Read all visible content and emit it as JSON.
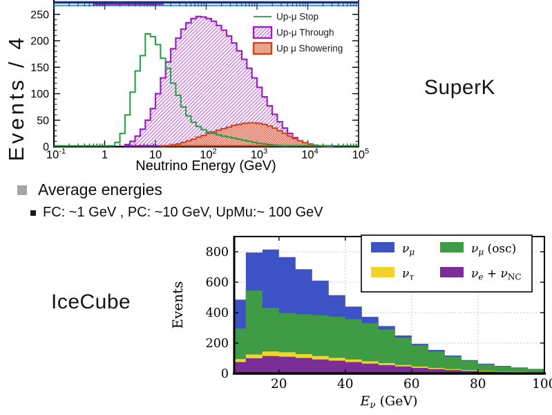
{
  "slide": {
    "superk_label": "SuperK",
    "icecube_label": "IceCube",
    "bullet_title": "Average energies",
    "bullet_sub": "FC: ~1 GeV , PC: ~10 GeV,  UpMu:~ 100 GeV"
  },
  "chart_data": [
    {
      "type": "area",
      "name": "superk-upward-muon-energy-spectrum",
      "xlabel": "Neutrino Energy (GeV)",
      "ylabel_visible": "Events / 4",
      "xscale": "log",
      "xlim": [
        0.1,
        100000
      ],
      "ylim_visible": [
        0,
        260
      ],
      "yticks": [
        0,
        50,
        100,
        150,
        200,
        250
      ],
      "xticks": [
        {
          "base": "10",
          "exp": "-1",
          "log": -1
        },
        {
          "base": "1",
          "exp": "",
          "log": 0
        },
        {
          "base": "10",
          "exp": "",
          "log": 1
        },
        {
          "base": "10",
          "exp": "2",
          "log": 2
        },
        {
          "base": "10",
          "exp": "3",
          "log": 3
        },
        {
          "base": "10",
          "exp": "4",
          "log": 4
        },
        {
          "base": "10",
          "exp": "5",
          "log": 5
        }
      ],
      "bins": {
        "log10_start": -1,
        "log10_step": 0.1,
        "count": 60
      },
      "legend": [
        {
          "label": "Up-μ Stop",
          "style": "line",
          "color": "#1f9e40"
        },
        {
          "label": "Up-μ Through",
          "style": "hatch",
          "color": "#9b1fc4"
        },
        {
          "label": "Up μ Showering",
          "style": "dots",
          "color": "#cc4418"
        }
      ],
      "colors": {
        "stop_line": "#1f9e40",
        "through_edge": "#9b1fc4",
        "through_hatch": "#c95fe0",
        "showering_edge": "#cc4418",
        "showering_fill": "#f4b4a1",
        "showering_dots": "#cf5533",
        "top_frame_navy": "#1c3179",
        "top_line_cyan": "#35a7c9",
        "top_line_magenta": "#c526b8"
      },
      "series": [
        {
          "name": "Up-μ Stop",
          "values": [
            0,
            0,
            0,
            0,
            0,
            0,
            0,
            0,
            0,
            0,
            0,
            0,
            8,
            25,
            60,
            103,
            143,
            172,
            213,
            208,
            193,
            167,
            148,
            120,
            97,
            75,
            58,
            46,
            38,
            32,
            28,
            25,
            22,
            20,
            18,
            16,
            14,
            12,
            10,
            8,
            6,
            5,
            4,
            3,
            2,
            1,
            0,
            0,
            0,
            0,
            0,
            0,
            0,
            0,
            0,
            0,
            0,
            0,
            0,
            0
          ]
        },
        {
          "name": "Up-μ Through",
          "values": [
            0,
            0,
            0,
            0,
            0,
            0,
            0,
            0,
            0,
            0,
            0,
            0,
            0,
            0,
            4,
            10,
            20,
            33,
            50,
            72,
            100,
            130,
            160,
            185,
            205,
            222,
            234,
            242,
            246,
            245,
            242,
            237,
            229,
            220,
            209,
            196,
            181,
            165,
            148,
            130,
            112,
            94,
            77,
            61,
            47,
            35,
            25,
            17,
            11,
            7,
            4,
            2.5,
            1.5,
            1,
            0.5,
            0,
            0,
            0,
            0,
            0
          ]
        },
        {
          "name": "Up μ Showering",
          "values": [
            0,
            0,
            0,
            0,
            0,
            0,
            0,
            0,
            0,
            0,
            0,
            0,
            0,
            0,
            0,
            0,
            0,
            0,
            0,
            0,
            0,
            1,
            2,
            3.5,
            5,
            8,
            11,
            14,
            18,
            21,
            25,
            28,
            31,
            34,
            37,
            40,
            42,
            44,
            45,
            45,
            44,
            42,
            39,
            35,
            30,
            25,
            20,
            15,
            11,
            7.5,
            5,
            3,
            1.5,
            0.7,
            0,
            0,
            0,
            0,
            0,
            0
          ]
        }
      ]
    },
    {
      "type": "bar",
      "name": "icecube-stacked-neutrino-energy",
      "stacked": true,
      "ylabel": "Events",
      "xlabel_parts": [
        {
          "t": "E"
        },
        {
          "t": "ν",
          "sub": 1
        },
        {
          "t": "  (GeV)",
          "rm": 1
        }
      ],
      "xlim": [
        6.5,
        100
      ],
      "ylim": [
        0,
        900
      ],
      "xticks": [
        20,
        40,
        60,
        80,
        100
      ],
      "yticks": [
        0,
        200,
        400,
        600,
        800
      ],
      "grid": "dotted",
      "bin_start": 5,
      "bin_width": 5,
      "series_note": "values are cumulative stack tops per 5-GeV bin",
      "series": [
        {
          "name": "nu_mu",
          "color": "#3d53c5",
          "values": [
            485,
            795,
            815,
            765,
            685,
            610,
            515,
            440,
            372,
            312,
            250,
            195,
            155,
            118,
            88,
            65,
            50,
            40,
            30
          ]
        },
        {
          "name": "nu_mu_osc",
          "color": "#3f9b44",
          "values": [
            295,
            545,
            432,
            398,
            390,
            383,
            373,
            357,
            330,
            290,
            235,
            185,
            145,
            110,
            82,
            60,
            46,
            36,
            27
          ]
        },
        {
          "name": "nu_tau",
          "color": "#f0d32b",
          "values": [
            95,
            125,
            145,
            140,
            128,
            115,
            103,
            92,
            80,
            68,
            56,
            46,
            37,
            29,
            23,
            17,
            13,
            10,
            8
          ]
        },
        {
          "name": "nu_e_nc",
          "color": "#7b2f96",
          "values": [
            75,
            100,
            115,
            110,
            102,
            92,
            84,
            75,
            65,
            55,
            46,
            37,
            29,
            23,
            17,
            13,
            10,
            7,
            5
          ]
        }
      ],
      "legend": [
        {
          "color": "#3d53c5",
          "parts": [
            {
              "t": "ν"
            },
            {
              "t": "μ",
              "sub": 1
            }
          ]
        },
        {
          "color": "#3f9b44",
          "parts": [
            {
              "t": "ν"
            },
            {
              "t": "μ",
              "sub": 1
            },
            {
              "t": "  (osc)",
              "rm": 1
            }
          ]
        },
        {
          "color": "#f0d32b",
          "parts": [
            {
              "t": "ν"
            },
            {
              "t": "τ",
              "sub": 1
            }
          ]
        },
        {
          "color": "#7b2f96",
          "parts": [
            {
              "t": "ν"
            },
            {
              "t": "e",
              "sub": 1
            },
            {
              "t": " + ",
              "rm": 1
            },
            {
              "t": "ν"
            },
            {
              "t": "NC",
              "sub": 1,
              "rm": 1
            }
          ]
        }
      ]
    }
  ]
}
